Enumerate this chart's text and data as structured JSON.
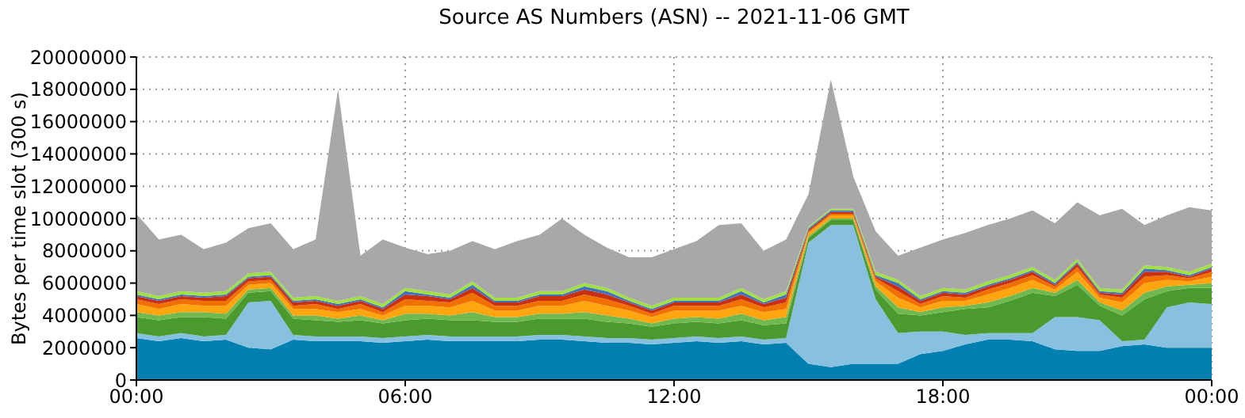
{
  "chart_data": {
    "type": "area",
    "title": "Source AS Numbers (ASN) -- 2021-11-06 GMT",
    "ylabel": "Bytes per time slot (300 s)",
    "stacked": true,
    "grid": true,
    "legend": false,
    "x": [
      0,
      0.5,
      1,
      1.5,
      2,
      2.5,
      3,
      3.5,
      4,
      4.5,
      5,
      5.5,
      6,
      6.5,
      7,
      7.5,
      8,
      8.5,
      9,
      9.5,
      10,
      10.5,
      11,
      11.5,
      12,
      12.5,
      13,
      13.5,
      14,
      14.5,
      15,
      15.5,
      16,
      16.5,
      17,
      17.5,
      18,
      18.5,
      19,
      19.5,
      20,
      20.5,
      21,
      21.5,
      22,
      22.5,
      23,
      23.5,
      24
    ],
    "xlim": [
      0,
      24
    ],
    "xticks": [
      {
        "value": 0,
        "label": "00:00"
      },
      {
        "value": 6,
        "label": "06:00"
      },
      {
        "value": 12,
        "label": "12:00"
      },
      {
        "value": 18,
        "label": "18:00"
      },
      {
        "value": 24,
        "label": "00:00"
      }
    ],
    "ylim": [
      0,
      20000000
    ],
    "yticks": [
      0,
      2000000,
      4000000,
      6000000,
      8000000,
      10000000,
      12000000,
      14000000,
      16000000,
      18000000,
      20000000
    ],
    "series": [
      {
        "color": "#0080b0",
        "values": [
          2600000,
          2400000,
          2600000,
          2400000,
          2500000,
          2000000,
          1900000,
          2500000,
          2400000,
          2400000,
          2400000,
          2300000,
          2400000,
          2500000,
          2400000,
          2400000,
          2400000,
          2400000,
          2500000,
          2500000,
          2400000,
          2300000,
          2300000,
          2200000,
          2300000,
          2400000,
          2300000,
          2400000,
          2200000,
          2300000,
          1000000,
          800000,
          1000000,
          1000000,
          1000000,
          1600000,
          1800000,
          2200000,
          2500000,
          2500000,
          2400000,
          1900000,
          1800000,
          1800000,
          2100000,
          2200000,
          2000000,
          2000000,
          2000000
        ]
      },
      {
        "color": "#88c0e0",
        "values": [
          300000,
          300000,
          300000,
          300000,
          300000,
          2800000,
          3000000,
          300000,
          300000,
          300000,
          300000,
          300000,
          300000,
          300000,
          300000,
          300000,
          300000,
          300000,
          300000,
          300000,
          300000,
          300000,
          300000,
          300000,
          300000,
          300000,
          300000,
          300000,
          300000,
          300000,
          7500000,
          8800000,
          8600000,
          4000000,
          1900000,
          1400000,
          1200000,
          600000,
          400000,
          400000,
          500000,
          2000000,
          2100000,
          1900000,
          300000,
          300000,
          2500000,
          2800000,
          2700000
        ]
      },
      {
        "color": "#4a9a30",
        "values": [
          1000000,
          1000000,
          1000000,
          1200000,
          1000000,
          600000,
          600000,
          1000000,
          1000000,
          900000,
          1000000,
          900000,
          1000000,
          1000000,
          1000000,
          1000000,
          900000,
          900000,
          1000000,
          1000000,
          1100000,
          1000000,
          900000,
          800000,
          900000,
          900000,
          900000,
          1000000,
          900000,
          900000,
          300000,
          300000,
          300000,
          600000,
          1200000,
          1000000,
          1200000,
          1600000,
          1600000,
          2000000,
          2500000,
          1300000,
          2000000,
          900000,
          1600000,
          2500000,
          1000000,
          900000,
          1000000
        ]
      },
      {
        "color": "#70b850",
        "values": [
          300000,
          300000,
          300000,
          300000,
          300000,
          200000,
          200000,
          200000,
          300000,
          200000,
          300000,
          200000,
          400000,
          300000,
          300000,
          500000,
          300000,
          300000,
          300000,
          300000,
          400000,
          400000,
          300000,
          200000,
          300000,
          300000,
          300000,
          400000,
          300000,
          400000,
          100000,
          100000,
          100000,
          200000,
          400000,
          200000,
          300000,
          200000,
          300000,
          300000,
          300000,
          200000,
          300000,
          200000,
          300000,
          400000,
          300000,
          200000,
          300000
        ]
      },
      {
        "color": "#ffa510",
        "values": [
          500000,
          400000,
          500000,
          400000,
          500000,
          300000,
          300000,
          400000,
          400000,
          400000,
          400000,
          300000,
          500000,
          500000,
          500000,
          700000,
          400000,
          400000,
          500000,
          500000,
          700000,
          600000,
          500000,
          400000,
          500000,
          400000,
          500000,
          500000,
          500000,
          500000,
          200000,
          200000,
          200000,
          300000,
          600000,
          300000,
          400000,
          300000,
          500000,
          500000,
          500000,
          200000,
          500000,
          300000,
          500000,
          600000,
          400000,
          200000,
          400000
        ]
      },
      {
        "color": "#f07000",
        "values": [
          300000,
          300000,
          300000,
          300000,
          300000,
          200000,
          200000,
          200000,
          300000,
          200000,
          300000,
          200000,
          400000,
          300000,
          300000,
          500000,
          300000,
          300000,
          300000,
          300000,
          400000,
          400000,
          300000,
          200000,
          300000,
          300000,
          300000,
          400000,
          300000,
          400000,
          100000,
          100000,
          100000,
          200000,
          400000,
          200000,
          300000,
          200000,
          300000,
          300000,
          300000,
          200000,
          300000,
          200000,
          300000,
          400000,
          300000,
          200000,
          300000
        ]
      },
      {
        "color": "#c83010",
        "values": [
          200000,
          200000,
          200000,
          200000,
          300000,
          200000,
          200000,
          200000,
          200000,
          200000,
          200000,
          200000,
          300000,
          300000,
          200000,
          300000,
          200000,
          200000,
          300000,
          300000,
          300000,
          300000,
          200000,
          200000,
          200000,
          200000,
          200000,
          300000,
          200000,
          300000,
          100000,
          100000,
          100000,
          100000,
          300000,
          200000,
          200000,
          200000,
          200000,
          200000,
          200000,
          100000,
          200000,
          100000,
          200000,
          300000,
          200000,
          100000,
          200000
        ]
      },
      {
        "color": "#4070c0",
        "values": [
          100000,
          100000,
          100000,
          100000,
          100000,
          100000,
          100000,
          100000,
          100000,
          100000,
          100000,
          100000,
          200000,
          100000,
          100000,
          200000,
          100000,
          100000,
          100000,
          100000,
          200000,
          200000,
          100000,
          100000,
          100000,
          100000,
          100000,
          200000,
          100000,
          200000,
          100000,
          100000,
          100000,
          100000,
          200000,
          100000,
          100000,
          100000,
          100000,
          100000,
          100000,
          100000,
          100000,
          100000,
          100000,
          200000,
          100000,
          100000,
          100000
        ]
      },
      {
        "color": "#a0e040",
        "values": [
          200000,
          200000,
          200000,
          200000,
          200000,
          200000,
          200000,
          200000,
          200000,
          200000,
          200000,
          200000,
          200000,
          200000,
          200000,
          200000,
          200000,
          200000,
          200000,
          200000,
          200000,
          200000,
          200000,
          200000,
          200000,
          200000,
          200000,
          200000,
          200000,
          200000,
          100000,
          100000,
          100000,
          200000,
          200000,
          200000,
          200000,
          200000,
          200000,
          200000,
          200000,
          200000,
          200000,
          200000,
          200000,
          200000,
          200000,
          200000,
          200000
        ]
      },
      {
        "color": "#a8a8a8",
        "values": [
          4800000,
          3500000,
          3500000,
          2700000,
          3000000,
          2800000,
          3000000,
          3000000,
          3500000,
          13100000,
          2500000,
          4000000,
          2500000,
          2300000,
          2700000,
          2500000,
          3000000,
          3500000,
          3500000,
          4500000,
          3000000,
          2500000,
          2500000,
          3000000,
          3000000,
          3500000,
          4500000,
          4000000,
          3000000,
          3200000,
          2000000,
          8000000,
          2000000,
          2500000,
          1500000,
          3000000,
          3000000,
          3500000,
          3500000,
          3500000,
          3500000,
          3500000,
          3500000,
          4500000,
          5000000,
          2500000,
          3200000,
          4000000,
          3300000
        ]
      }
    ]
  }
}
